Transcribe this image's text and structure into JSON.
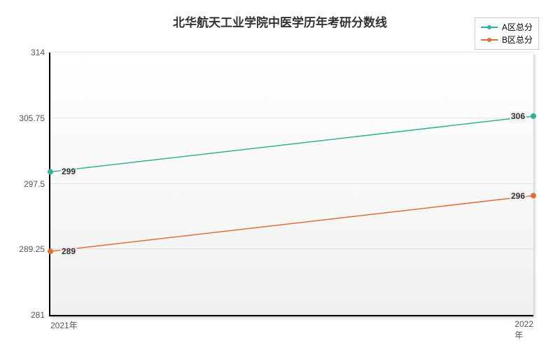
{
  "chart": {
    "type": "line",
    "title": "北华航天工业学院中医学历年考研分数线",
    "title_fontsize": 17,
    "title_color": "#333333",
    "background_color": "#ffffff",
    "plot_bg_gradient_top": "#ffffff",
    "plot_bg_gradient_bottom": "#f0f0f0",
    "grid_color": "#cccccc",
    "axis_color": "#000000",
    "x_categories": [
      "2021年",
      "2022年"
    ],
    "y_ticks": [
      281,
      289.25,
      297.5,
      305.75,
      314
    ],
    "ylim": [
      281,
      314
    ],
    "series": [
      {
        "name": "A区总分",
        "color": "#2fb39a",
        "values": [
          299,
          306
        ],
        "marker": "circle"
      },
      {
        "name": "B区总分",
        "color": "#e06c3a",
        "values": [
          289,
          296
        ],
        "marker": "circle"
      }
    ],
    "legend_position": "top-right",
    "label_fontsize": 12,
    "label_color": "#555555",
    "point_label_fontsize": 12,
    "point_label_color": "#333333"
  }
}
